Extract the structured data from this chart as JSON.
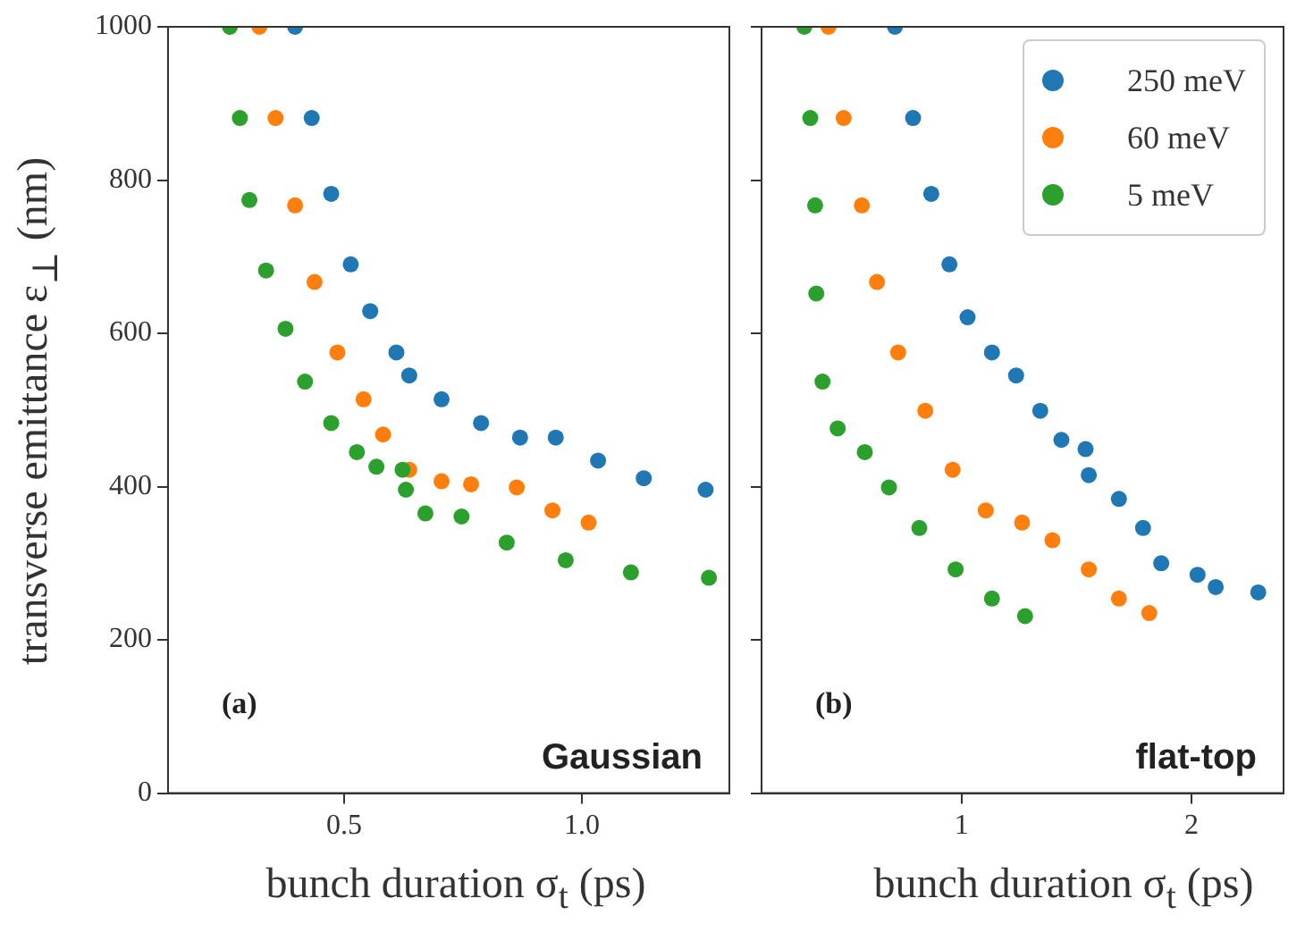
{
  "chart_data": [
    {
      "type": "scatter",
      "xlabel": "bunch duration σ$_{t}$ (ps)",
      "ylabel": "transverse emittance ε$_{⊥}$ (nm)",
      "annotations": [
        "(a)",
        "Gaussian"
      ],
      "xlim": [
        0.13,
        1.31
      ],
      "ylim": [
        0,
        1000
      ],
      "xticks": [
        0.5,
        {
          "value": 1.0,
          "label": "1.0"
        }
      ],
      "yticks": [
        0,
        200,
        400,
        600,
        800,
        1000
      ],
      "grid": false,
      "legend": false,
      "marker": "circle",
      "series": [
        {
          "color": "#1f77b4",
          "x": [
            0.397,
            0.432,
            0.473,
            0.514,
            0.555,
            0.61,
            0.637,
            0.705,
            0.788,
            0.87,
            0.945,
            1.034,
            1.13,
            1.26
          ],
          "values": [
            1000,
            881,
            782,
            690,
            629,
            575,
            545,
            514,
            483,
            464,
            464,
            434,
            411,
            396
          ]
        },
        {
          "color": "#ff7f0e",
          "x": [
            0.322,
            0.356,
            0.397,
            0.438,
            0.486,
            0.541,
            0.582,
            0.637,
            0.705,
            0.767,
            0.863,
            0.938,
            1.014
          ],
          "values": [
            1000,
            881,
            767,
            667,
            575,
            514,
            468,
            422,
            407,
            403,
            399,
            369,
            353
          ]
        },
        {
          "color": "#2ca02c",
          "x": [
            0.26,
            0.281,
            0.301,
            0.336,
            0.377,
            0.418,
            0.473,
            0.527,
            0.568,
            0.623,
            0.63,
            0.671,
            0.747,
            0.842,
            0.966,
            1.103,
            1.267
          ],
          "values": [
            1000,
            881,
            774,
            682,
            606,
            537,
            483,
            445,
            426,
            422,
            396,
            365,
            361,
            327,
            304,
            288,
            281
          ]
        }
      ]
    },
    {
      "type": "scatter",
      "xlabel": "bunch duration σ$_{t}$ (ps)",
      "annotations": [
        "(b)",
        "flat-top"
      ],
      "xlim": [
        0.13,
        2.4
      ],
      "ylim": [
        0,
        1000
      ],
      "xticks": [
        1,
        2
      ],
      "yticks": [
        0,
        200,
        400,
        600,
        800,
        1000
      ],
      "tick_labels": "x",
      "grid": false,
      "legend": "top right",
      "marker": "circle",
      "series": [
        {
          "name": "250 meV",
          "color": "#1f77b4",
          "x": [
            0.71,
            0.789,
            0.868,
            0.947,
            1.026,
            1.132,
            1.237,
            1.342,
            1.434,
            1.539,
            1.553,
            1.684,
            1.789,
            1.868,
            2.026,
            2.105,
            2.29
          ],
          "values": [
            1000,
            881,
            782,
            690,
            621,
            575,
            545,
            499,
            461,
            449,
            415,
            384,
            346,
            300,
            285,
            269,
            262
          ]
        },
        {
          "name": "60 meV",
          "color": "#ff7f0e",
          "x": [
            0.421,
            0.487,
            0.566,
            0.632,
            0.724,
            0.842,
            0.961,
            1.105,
            1.263,
            1.395,
            1.553,
            1.684,
            1.816
          ],
          "values": [
            1000,
            881,
            767,
            667,
            575,
            499,
            422,
            369,
            353,
            330,
            292,
            254,
            235
          ]
        },
        {
          "name": "5 meV",
          "color": "#2ca02c",
          "x": [
            0.316,
            0.342,
            0.363,
            0.368,
            0.395,
            0.461,
            0.579,
            0.684,
            0.816,
            0.974,
            1.132,
            1.276
          ],
          "values": [
            1000,
            881,
            767,
            652,
            537,
            476,
            445,
            399,
            346,
            292,
            254,
            231
          ]
        }
      ]
    }
  ]
}
